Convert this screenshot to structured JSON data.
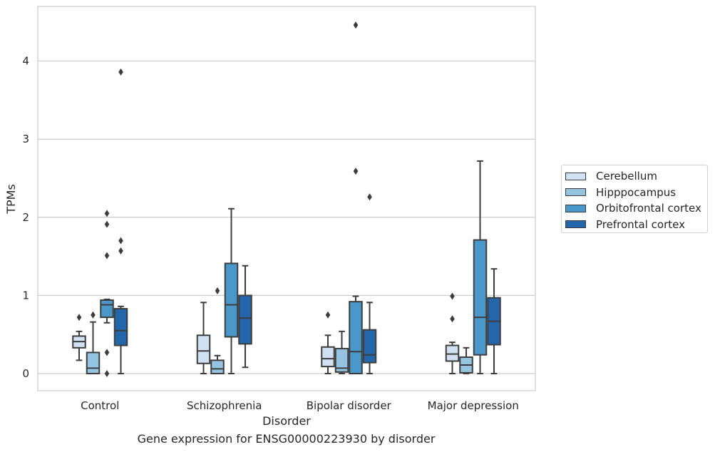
{
  "chart_data": {
    "type": "boxplot",
    "xlabel": "Disorder",
    "ylabel": "TPMs",
    "caption": "Gene expression for ENSG00000223930 by disorder",
    "ylim": [
      -0.22,
      4.7
    ],
    "yticks": [
      0,
      1,
      2,
      3,
      4
    ],
    "grid": "horizontal",
    "legend_position": "right",
    "categories": [
      "Control",
      "Schizophrenia",
      "Bipolar disorder",
      "Major depression"
    ],
    "series": [
      {
        "name": "Cerebellum",
        "color": "#d0e1f2",
        "boxes": [
          {
            "whislo": 0.17,
            "q1": 0.33,
            "med": 0.41,
            "q3": 0.48,
            "whishi": 0.54,
            "fliers": [
              0.72
            ]
          },
          {
            "whislo": 0.0,
            "q1": 0.13,
            "med": 0.29,
            "q3": 0.49,
            "whishi": 0.91,
            "fliers": []
          },
          {
            "whislo": 0.0,
            "q1": 0.09,
            "med": 0.19,
            "q3": 0.34,
            "whishi": 0.49,
            "fliers": [
              0.75
            ]
          },
          {
            "whislo": 0.0,
            "q1": 0.16,
            "med": 0.25,
            "q3": 0.36,
            "whishi": 0.4,
            "fliers": [
              0.7,
              0.99
            ]
          }
        ]
      },
      {
        "name": "Hipppocampus",
        "color": "#94c4df",
        "boxes": [
          {
            "whislo": 0.0,
            "q1": 0.0,
            "med": 0.07,
            "q3": 0.27,
            "whishi": 0.66,
            "fliers": [
              0.75
            ]
          },
          {
            "whislo": 0.0,
            "q1": 0.0,
            "med": 0.06,
            "q3": 0.17,
            "whishi": 0.23,
            "fliers": [
              1.06
            ]
          },
          {
            "whislo": 0.0,
            "q1": 0.02,
            "med": 0.07,
            "q3": 0.32,
            "whishi": 0.54,
            "fliers": []
          },
          {
            "whislo": 0.0,
            "q1": 0.01,
            "med": 0.11,
            "q3": 0.21,
            "whishi": 0.33,
            "fliers": []
          }
        ]
      },
      {
        "name": "Orbitofrontal cortex",
        "color": "#4a98c9",
        "boxes": [
          {
            "whislo": 0.65,
            "q1": 0.72,
            "med": 0.88,
            "q3": 0.94,
            "whishi": 0.95,
            "fliers": [
              2.05,
              1.91,
              1.51,
              0.27,
              0.0
            ]
          },
          {
            "whislo": 0.0,
            "q1": 0.47,
            "med": 0.88,
            "q3": 1.41,
            "whishi": 2.11,
            "fliers": []
          },
          {
            "whislo": 0.0,
            "q1": 0.0,
            "med": 0.28,
            "q3": 0.92,
            "whishi": 0.99,
            "fliers": [
              4.46,
              2.59
            ]
          },
          {
            "whislo": 0.0,
            "q1": 0.24,
            "med": 0.72,
            "q3": 1.71,
            "whishi": 2.72,
            "fliers": []
          }
        ]
      },
      {
        "name": "Prefrontal cortex",
        "color": "#2366ac",
        "boxes": [
          {
            "whislo": 0.0,
            "q1": 0.36,
            "med": 0.55,
            "q3": 0.83,
            "whishi": 0.86,
            "fliers": [
              3.86,
              1.7,
              1.57
            ]
          },
          {
            "whislo": 0.08,
            "q1": 0.38,
            "med": 0.71,
            "q3": 1.0,
            "whishi": 1.38,
            "fliers": []
          },
          {
            "whislo": 0.0,
            "q1": 0.14,
            "med": 0.24,
            "q3": 0.56,
            "whishi": 0.91,
            "fliers": [
              2.26
            ]
          },
          {
            "whislo": 0.0,
            "q1": 0.37,
            "med": 0.67,
            "q3": 0.97,
            "whishi": 1.34,
            "fliers": []
          }
        ]
      }
    ]
  }
}
